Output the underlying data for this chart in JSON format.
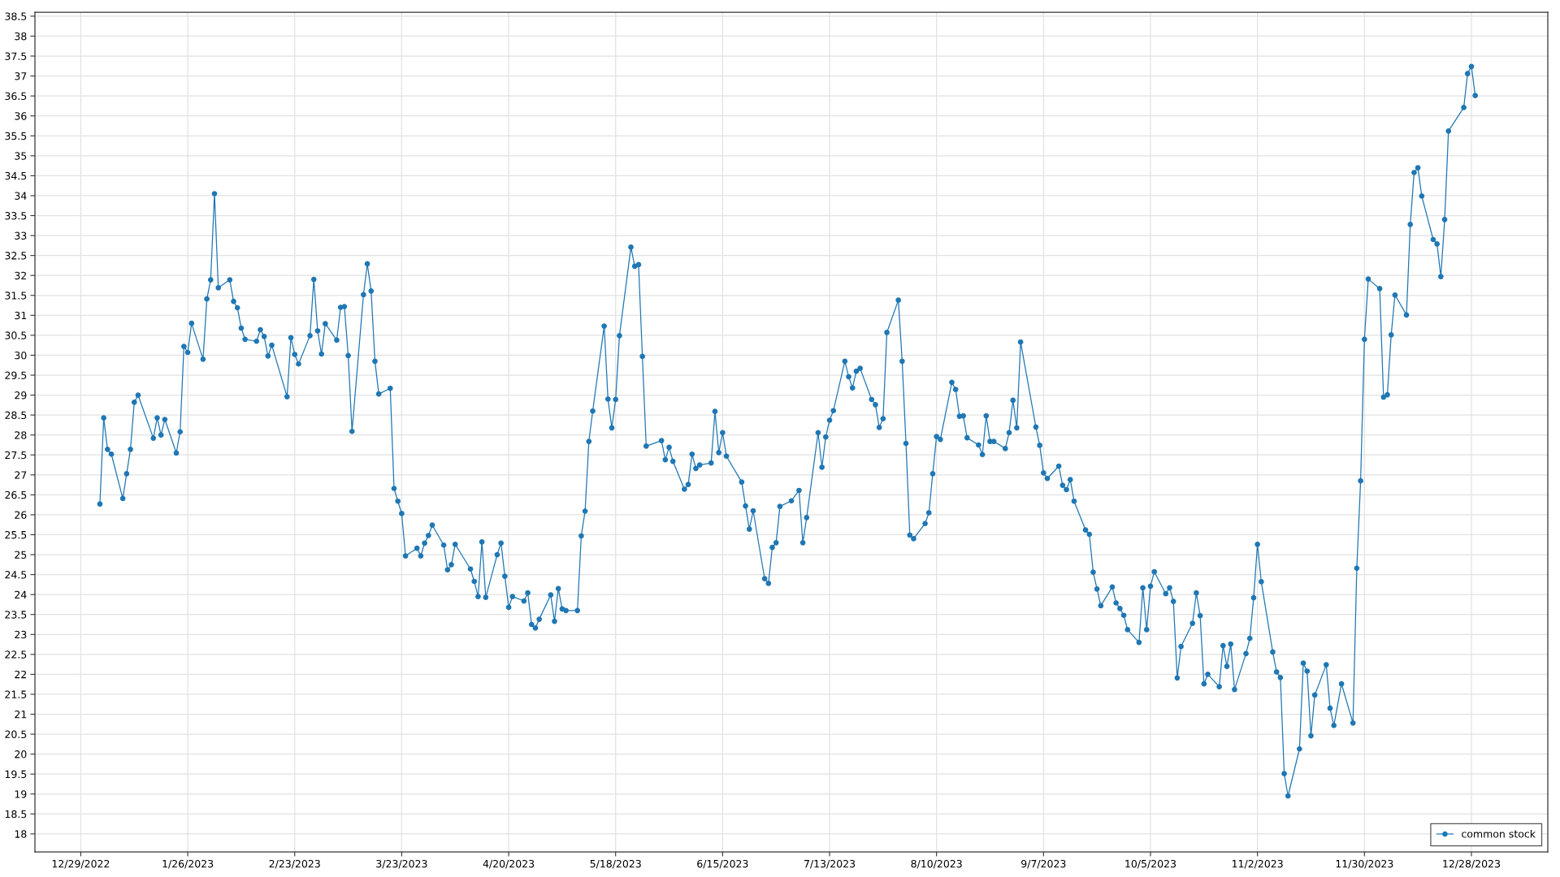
{
  "chart_data": {
    "type": "line",
    "x": [
      "2023-01-03",
      "2023-01-04",
      "2023-01-05",
      "2023-01-06",
      "2023-01-09",
      "2023-01-10",
      "2023-01-11",
      "2023-01-12",
      "2023-01-13",
      "2023-01-17",
      "2023-01-18",
      "2023-01-19",
      "2023-01-20",
      "2023-01-23",
      "2023-01-24",
      "2023-01-25",
      "2023-01-26",
      "2023-01-27",
      "2023-01-30",
      "2023-01-31",
      "2023-02-01",
      "2023-02-02",
      "2023-02-03",
      "2023-02-06",
      "2023-02-07",
      "2023-02-08",
      "2023-02-09",
      "2023-02-10",
      "2023-02-13",
      "2023-02-14",
      "2023-02-15",
      "2023-02-16",
      "2023-02-17",
      "2023-02-21",
      "2023-02-22",
      "2023-02-23",
      "2023-02-24",
      "2023-02-27",
      "2023-02-28",
      "2023-03-01",
      "2023-03-02",
      "2023-03-03",
      "2023-03-06",
      "2023-03-07",
      "2023-03-08",
      "2023-03-09",
      "2023-03-10",
      "2023-03-13",
      "2023-03-14",
      "2023-03-15",
      "2023-03-16",
      "2023-03-17",
      "2023-03-20",
      "2023-03-21",
      "2023-03-22",
      "2023-03-23",
      "2023-03-24",
      "2023-03-27",
      "2023-03-28",
      "2023-03-29",
      "2023-03-30",
      "2023-03-31",
      "2023-04-03",
      "2023-04-04",
      "2023-04-05",
      "2023-04-06",
      "2023-04-10",
      "2023-04-11",
      "2023-04-12",
      "2023-04-13",
      "2023-04-14",
      "2023-04-17",
      "2023-04-18",
      "2023-04-19",
      "2023-04-20",
      "2023-04-21",
      "2023-04-24",
      "2023-04-25",
      "2023-04-26",
      "2023-04-27",
      "2023-04-28",
      "2023-05-01",
      "2023-05-02",
      "2023-05-03",
      "2023-05-04",
      "2023-05-05",
      "2023-05-08",
      "2023-05-09",
      "2023-05-10",
      "2023-05-11",
      "2023-05-12",
      "2023-05-15",
      "2023-05-16",
      "2023-05-17",
      "2023-05-18",
      "2023-05-19",
      "2023-05-22",
      "2023-05-23",
      "2023-05-24",
      "2023-05-25",
      "2023-05-26",
      "2023-05-30",
      "2023-05-31",
      "2023-06-01",
      "2023-06-02",
      "2023-06-05",
      "2023-06-06",
      "2023-06-07",
      "2023-06-08",
      "2023-06-09",
      "2023-06-12",
      "2023-06-13",
      "2023-06-14",
      "2023-06-15",
      "2023-06-16",
      "2023-06-20",
      "2023-06-21",
      "2023-06-22",
      "2023-06-23",
      "2023-06-26",
      "2023-06-27",
      "2023-06-28",
      "2023-06-29",
      "2023-06-30",
      "2023-07-03",
      "2023-07-05",
      "2023-07-06",
      "2023-07-07",
      "2023-07-10",
      "2023-07-11",
      "2023-07-12",
      "2023-07-13",
      "2023-07-14",
      "2023-07-17",
      "2023-07-18",
      "2023-07-19",
      "2023-07-20",
      "2023-07-21",
      "2023-07-24",
      "2023-07-25",
      "2023-07-26",
      "2023-07-27",
      "2023-07-28",
      "2023-07-31",
      "2023-08-01",
      "2023-08-02",
      "2023-08-03",
      "2023-08-04",
      "2023-08-07",
      "2023-08-08",
      "2023-08-09",
      "2023-08-10",
      "2023-08-11",
      "2023-08-14",
      "2023-08-15",
      "2023-08-16",
      "2023-08-17",
      "2023-08-18",
      "2023-08-21",
      "2023-08-22",
      "2023-08-23",
      "2023-08-24",
      "2023-08-25",
      "2023-08-28",
      "2023-08-29",
      "2023-08-30",
      "2023-08-31",
      "2023-09-01",
      "2023-09-05",
      "2023-09-06",
      "2023-09-07",
      "2023-09-08",
      "2023-09-11",
      "2023-09-12",
      "2023-09-13",
      "2023-09-14",
      "2023-09-15",
      "2023-09-18",
      "2023-09-19",
      "2023-09-20",
      "2023-09-21",
      "2023-09-22",
      "2023-09-25",
      "2023-09-26",
      "2023-09-27",
      "2023-09-28",
      "2023-09-29",
      "2023-10-02",
      "2023-10-03",
      "2023-10-04",
      "2023-10-05",
      "2023-10-06",
      "2023-10-09",
      "2023-10-10",
      "2023-10-11",
      "2023-10-12",
      "2023-10-13",
      "2023-10-16",
      "2023-10-17",
      "2023-10-18",
      "2023-10-19",
      "2023-10-20",
      "2023-10-23",
      "2023-10-24",
      "2023-10-25",
      "2023-10-26",
      "2023-10-27",
      "2023-10-30",
      "2023-10-31",
      "2023-11-01",
      "2023-11-02",
      "2023-11-03",
      "2023-11-06",
      "2023-11-07",
      "2023-11-08",
      "2023-11-09",
      "2023-11-10",
      "2023-11-13",
      "2023-11-14",
      "2023-11-15",
      "2023-11-16",
      "2023-11-17",
      "2023-11-20",
      "2023-11-21",
      "2023-11-22",
      "2023-11-24",
      "2023-11-27",
      "2023-11-28",
      "2023-11-29",
      "2023-11-30",
      "2023-12-01",
      "2023-12-04",
      "2023-12-05",
      "2023-12-06",
      "2023-12-07",
      "2023-12-08",
      "2023-12-11",
      "2023-12-12",
      "2023-12-13",
      "2023-12-14",
      "2023-12-15",
      "2023-12-18",
      "2023-12-19",
      "2023-12-20",
      "2023-12-21",
      "2023-12-22",
      "2023-12-26",
      "2023-12-27",
      "2023-12-28",
      "2023-12-29"
    ],
    "series": [
      {
        "name": "common stock",
        "color": "#1f77b4",
        "values": [
          26.27,
          28.43,
          27.64,
          27.52,
          26.41,
          27.03,
          27.64,
          28.82,
          29.0,
          27.92,
          28.43,
          28.0,
          28.39,
          27.55,
          28.08,
          30.22,
          30.07,
          30.8,
          29.9,
          31.41,
          31.89,
          34.05,
          31.69,
          31.89,
          31.35,
          31.19,
          30.68,
          30.4,
          30.35,
          30.64,
          30.47,
          29.98,
          30.25,
          28.96,
          30.44,
          30.02,
          29.78,
          30.49,
          31.9,
          30.61,
          30.03,
          30.79,
          30.38,
          31.2,
          31.22,
          29.99,
          28.09,
          31.52,
          32.29,
          31.61,
          29.85,
          29.03,
          29.17,
          26.66,
          26.34,
          26.03,
          24.97,
          25.16,
          24.97,
          25.29,
          25.48,
          25.74,
          25.24,
          24.62,
          24.75,
          25.26,
          24.64,
          24.33,
          23.95,
          25.32,
          23.93,
          25.0,
          25.29,
          24.46,
          23.68,
          23.95,
          23.84,
          24.04,
          23.25,
          23.16,
          23.38,
          23.99,
          23.33,
          24.15,
          23.64,
          23.6,
          23.6,
          25.47,
          26.09,
          27.84,
          28.6,
          30.73,
          28.9,
          28.18,
          28.89,
          30.49,
          32.71,
          32.23,
          32.27,
          29.97,
          27.72,
          27.86,
          27.38,
          27.69,
          27.34,
          26.64,
          26.76,
          27.52,
          27.16,
          27.25,
          27.3,
          28.59,
          27.56,
          28.06,
          27.47,
          26.82,
          26.22,
          25.64,
          26.1,
          24.4,
          24.28,
          25.18,
          25.3,
          26.21,
          26.35,
          26.61,
          25.3,
          25.93,
          28.06,
          27.19,
          27.95,
          28.37,
          28.61,
          29.85,
          29.46,
          29.18,
          29.6,
          29.67,
          28.89,
          28.76,
          28.19,
          28.41,
          30.57,
          31.38,
          29.85,
          27.79,
          25.49,
          25.4,
          25.78,
          26.05,
          27.03,
          27.96,
          27.89,
          29.32,
          29.14,
          28.47,
          28.48,
          27.93,
          27.75,
          27.51,
          28.48,
          27.84,
          27.84,
          27.66,
          28.06,
          28.87,
          28.18,
          30.33,
          28.2,
          27.74,
          27.05,
          26.91,
          27.22,
          26.74,
          26.63,
          26.88,
          26.34,
          25.62,
          25.51,
          24.56,
          24.14,
          23.72,
          24.19,
          23.79,
          23.65,
          23.48,
          23.12,
          22.8,
          24.17,
          23.12,
          24.21,
          24.57,
          24.02,
          24.17,
          23.83,
          21.91,
          22.7,
          23.28,
          24.04,
          23.47,
          21.76,
          22.0,
          21.69,
          22.72,
          22.2,
          22.76,
          21.62,
          22.52,
          22.9,
          23.92,
          25.26,
          24.32,
          22.56,
          22.06,
          21.92,
          19.51,
          18.95,
          20.13,
          22.28,
          22.08,
          20.46,
          21.48,
          22.24,
          21.15,
          20.72,
          21.76,
          20.78,
          24.66,
          26.85,
          30.4,
          31.91,
          31.67,
          28.95,
          29.01,
          30.51,
          31.51,
          31.01,
          33.28,
          34.58,
          34.7,
          33.99,
          32.9,
          32.79,
          31.97,
          33.4,
          35.62,
          36.21,
          37.06,
          37.24,
          36.51
        ]
      }
    ],
    "xlim": [
      "2022-12-17",
      "2024-01-17"
    ],
    "xticks": [
      {
        "value": "2022-12-29",
        "label": "12/29/2022"
      },
      {
        "value": "2023-01-26",
        "label": "1/26/2023"
      },
      {
        "value": "2023-02-23",
        "label": "2/23/2023"
      },
      {
        "value": "2023-03-23",
        "label": "3/23/2023"
      },
      {
        "value": "2023-04-20",
        "label": "4/20/2023"
      },
      {
        "value": "2023-05-18",
        "label": "5/18/2023"
      },
      {
        "value": "2023-06-15",
        "label": "6/15/2023"
      },
      {
        "value": "2023-07-13",
        "label": "7/13/2023"
      },
      {
        "value": "2023-08-10",
        "label": "8/10/2023"
      },
      {
        "value": "2023-09-07",
        "label": "9/7/2023"
      },
      {
        "value": "2023-10-05",
        "label": "10/5/2023"
      },
      {
        "value": "2023-11-02",
        "label": "11/2/2023"
      },
      {
        "value": "2023-11-30",
        "label": "11/30/2023"
      },
      {
        "value": "2023-12-28",
        "label": "12/28/2023"
      }
    ],
    "ylim": [
      17.55,
      38.6
    ],
    "yticks": [
      18,
      18.5,
      19,
      19.5,
      20,
      20.5,
      21,
      21.5,
      22,
      22.5,
      23,
      23.5,
      24,
      24.5,
      25,
      25.5,
      26,
      26.5,
      27,
      27.5,
      28,
      28.5,
      29,
      29.5,
      30,
      30.5,
      31,
      31.5,
      32,
      32.5,
      33,
      33.5,
      34,
      34.5,
      35,
      35.5,
      36,
      36.5,
      37,
      37.5,
      38,
      38.5
    ],
    "grid": true,
    "legend": "bottom right",
    "marker": "circle",
    "line_style": "solid"
  }
}
